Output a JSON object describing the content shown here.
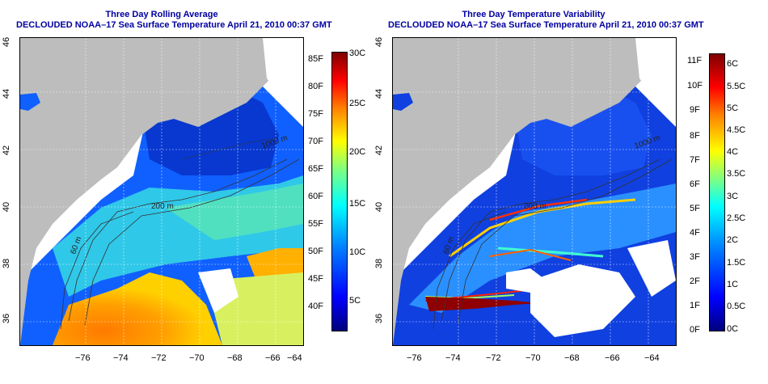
{
  "left_panel": {
    "title_line1": "Three Day Rolling Average",
    "title_line2": "DECLOUDED NOAA–17 Sea Surface Temperature April 21, 2010 00:37 GMT",
    "x_ticks": [
      "−76",
      "−74",
      "−72",
      "−70",
      "−68",
      "−66",
      "−64"
    ],
    "y_ticks": [
      "46",
      "44",
      "42",
      "40",
      "38",
      "36"
    ],
    "contour_labels": [
      "1000 m",
      "200 m",
      "60 m"
    ],
    "colorbar_f": [
      "85F",
      "80F",
      "75F",
      "70F",
      "65F",
      "60F",
      "55F",
      "50F",
      "45F",
      "40F"
    ],
    "colorbar_c": [
      "30C",
      "25C",
      "20C",
      "15C",
      "10C",
      "5C"
    ]
  },
  "right_panel": {
    "title_line1": "Three Day Temperature Variability",
    "title_line2": "DECLOUDED NOAA–17 Sea Surface Temperature April 21, 2010 00:37 GMT",
    "x_ticks": [
      "−76",
      "−74",
      "−72",
      "−70",
      "−68",
      "−66",
      "−64"
    ],
    "y_ticks": [
      "46",
      "44",
      "42",
      "40",
      "38",
      "36"
    ],
    "contour_labels": [
      "1000 m",
      "200 m",
      "60 m"
    ],
    "colorbar_f": [
      "11F",
      "10F",
      "9F",
      "8F",
      "7F",
      "6F",
      "5F",
      "4F",
      "3F",
      "2F",
      "1F",
      "0F"
    ],
    "colorbar_c": [
      "6C",
      "5.5C",
      "5C",
      "4.5C",
      "4C",
      "3.5C",
      "3C",
      "2.5C",
      "2C",
      "1.5C",
      "1C",
      "0.5C",
      "0C"
    ]
  },
  "colors": {
    "land": "#bdbdbd",
    "title": "#0000a0",
    "sst_scale": [
      "#00007f",
      "#0000ff",
      "#0080ff",
      "#00ffff",
      "#80ff80",
      "#ffff00",
      "#ff8000",
      "#ff0000",
      "#7f0000"
    ]
  }
}
